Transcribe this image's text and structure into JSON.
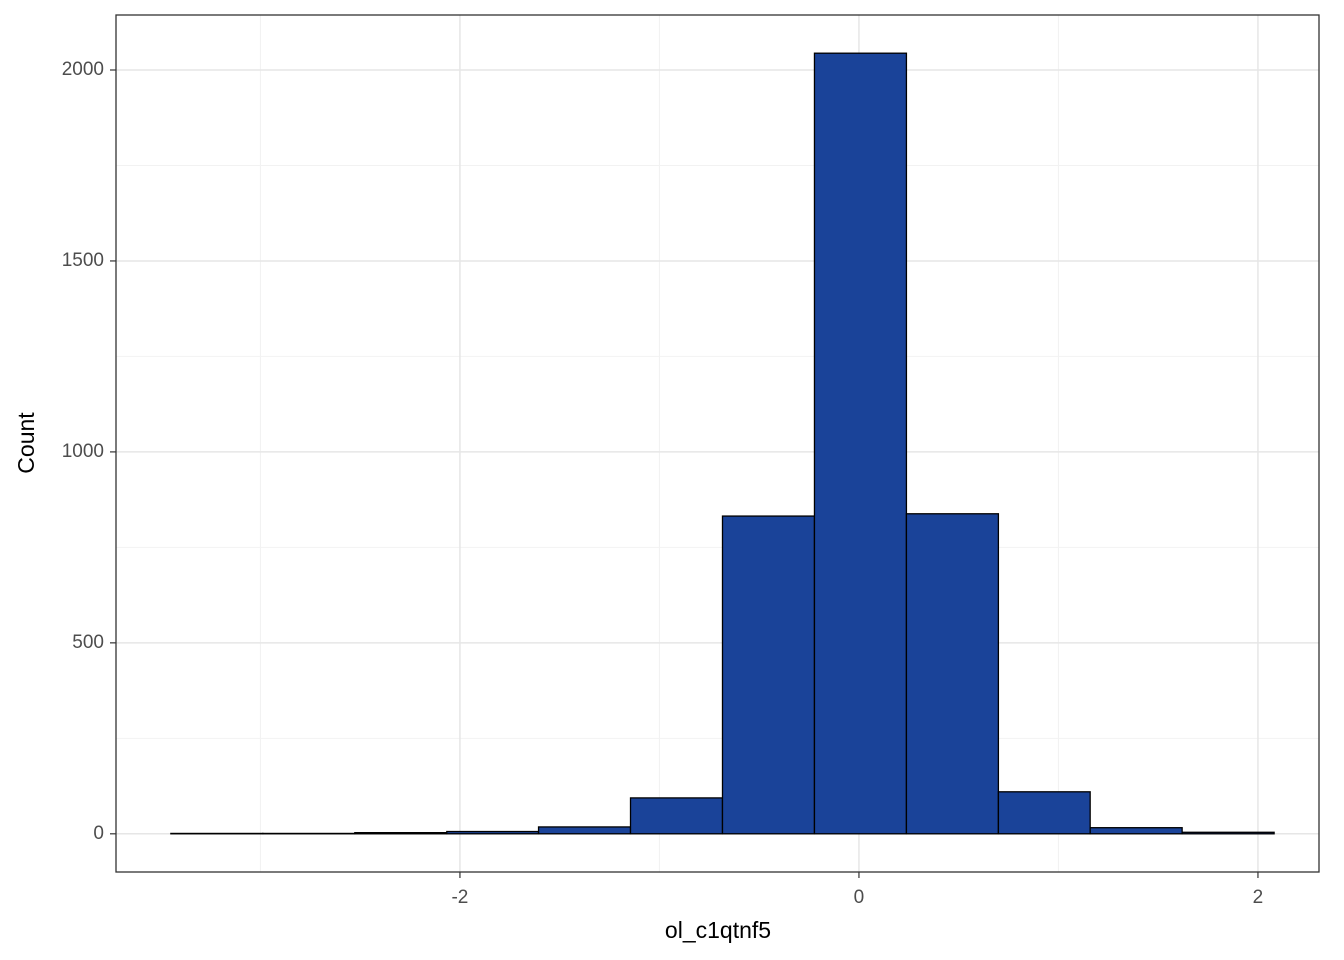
{
  "chart_data": {
    "type": "histogram",
    "x_label": "ol_c1qtnf5",
    "y_label": "Count",
    "bins": [
      -3.449,
      -2.988,
      -2.527,
      -2.066,
      -1.606,
      -1.145,
      -0.684,
      -0.223,
      0.238,
      0.699,
      1.159,
      1.62,
      2.081
    ],
    "values": [
      1,
      1,
      3,
      6,
      18,
      94,
      832,
      2044,
      838,
      110,
      16,
      4
    ],
    "color": "#1a4399",
    "edge_color": "#000000",
    "xlim": [
      -3.724,
      2.306
    ],
    "ylim": [
      -100,
      2144
    ],
    "xticks": [
      -2,
      0,
      2
    ],
    "yticks": [
      0,
      500,
      1000,
      1500,
      2000
    ],
    "xminor": [
      -3,
      -1,
      1
    ],
    "yminor": [
      250,
      750,
      1250,
      1750
    ],
    "grid": true
  }
}
